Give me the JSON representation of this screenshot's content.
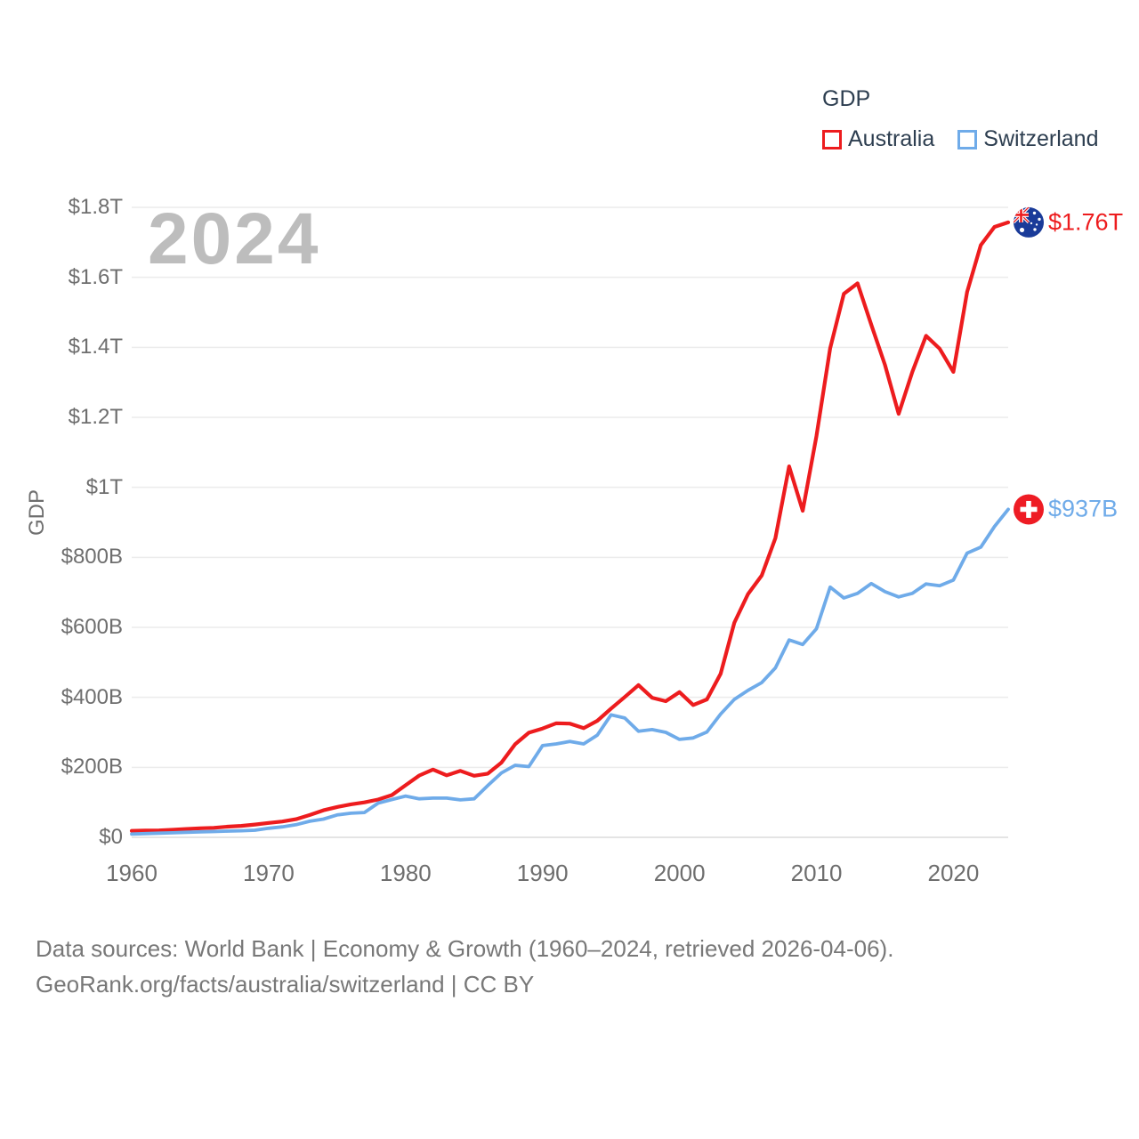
{
  "watermark": "2024",
  "legend": {
    "title": "GDP",
    "items": [
      {
        "label": "Australia",
        "color": "#ed1c1e"
      },
      {
        "label": "Switzerland",
        "color": "#6fabe9"
      }
    ]
  },
  "footer": {
    "line1": "Data sources: World Bank | Economy & Growth (1960–2024, retrieved 2026-04-06).",
    "line2": "GeoRank.org/facts/australia/switzerland | CC BY"
  },
  "colors": {
    "australia": "#ed1c1e",
    "switzerland": "#6fabe9",
    "grid": "#ececec",
    "baseline": "#dcdcdc",
    "axis_text": "#6e6e6e",
    "au_flag_navy": "#1a3b99",
    "ch_flag_red": "#ee1c24"
  },
  "chart_data": {
    "type": "line",
    "title": "GDP",
    "xlabel": "",
    "ylabel": "GDP",
    "unit": "billions of USD",
    "x_start": 1960,
    "x_end": 2024,
    "x_step": 1,
    "ylim": [
      0,
      1800
    ],
    "grid": "horizontal",
    "legend_position": "top-right",
    "ytick_values": [
      0,
      200,
      400,
      600,
      800,
      1000,
      1200,
      1400,
      1600,
      1800
    ],
    "ytick_labels": [
      "$0",
      "$200B",
      "$400B",
      "$600B",
      "$800B",
      "$1T",
      "$1.2T",
      "$1.4T",
      "$1.6T",
      "$1.8T"
    ],
    "xtick_values": [
      1960,
      1970,
      1980,
      1990,
      2000,
      2010,
      2020
    ],
    "series": [
      {
        "name": "Australia",
        "color": "#ed1c1e",
        "end_label": "$1.76T",
        "values": [
          18.6,
          19.7,
          19.9,
          21.5,
          23.8,
          26,
          27.3,
          30.4,
          32.7,
          36.6,
          41.3,
          45.2,
          51.9,
          63.7,
          77.2,
          86.6,
          94.4,
          100,
          108,
          120.7,
          149,
          176.6,
          193.8,
          177.2,
          190,
          176,
          182,
          213.6,
          266,
          299,
          311,
          326,
          325,
          312,
          333,
          368,
          401,
          435,
          399,
          389,
          415,
          378,
          394,
          467,
          613,
          695,
          748,
          855,
          1060,
          933,
          1146,
          1397,
          1553,
          1583,
          1465,
          1350,
          1210,
          1330,
          1433,
          1396,
          1330,
          1558,
          1692,
          1744,
          1757
        ]
      },
      {
        "name": "Switzerland",
        "color": "#6fabe9",
        "end_label": "$937B",
        "values": [
          9.5,
          10.7,
          11.9,
          13,
          14.4,
          15.5,
          16.6,
          17.7,
          18.9,
          20.3,
          26,
          30,
          36,
          46,
          52,
          64,
          69,
          71,
          98,
          108,
          118,
          110,
          112,
          112,
          107,
          110,
          148,
          184,
          206,
          202,
          262,
          267,
          274,
          267,
          292,
          350,
          341,
          303,
          308,
          300,
          280,
          284,
          301,
          352,
          394,
          420,
          442,
          484,
          564,
          551,
          596,
          715,
          684,
          697,
          725,
          702,
          687,
          697,
          724,
          719,
          735,
          812,
          829,
          888,
          937
        ]
      }
    ]
  }
}
